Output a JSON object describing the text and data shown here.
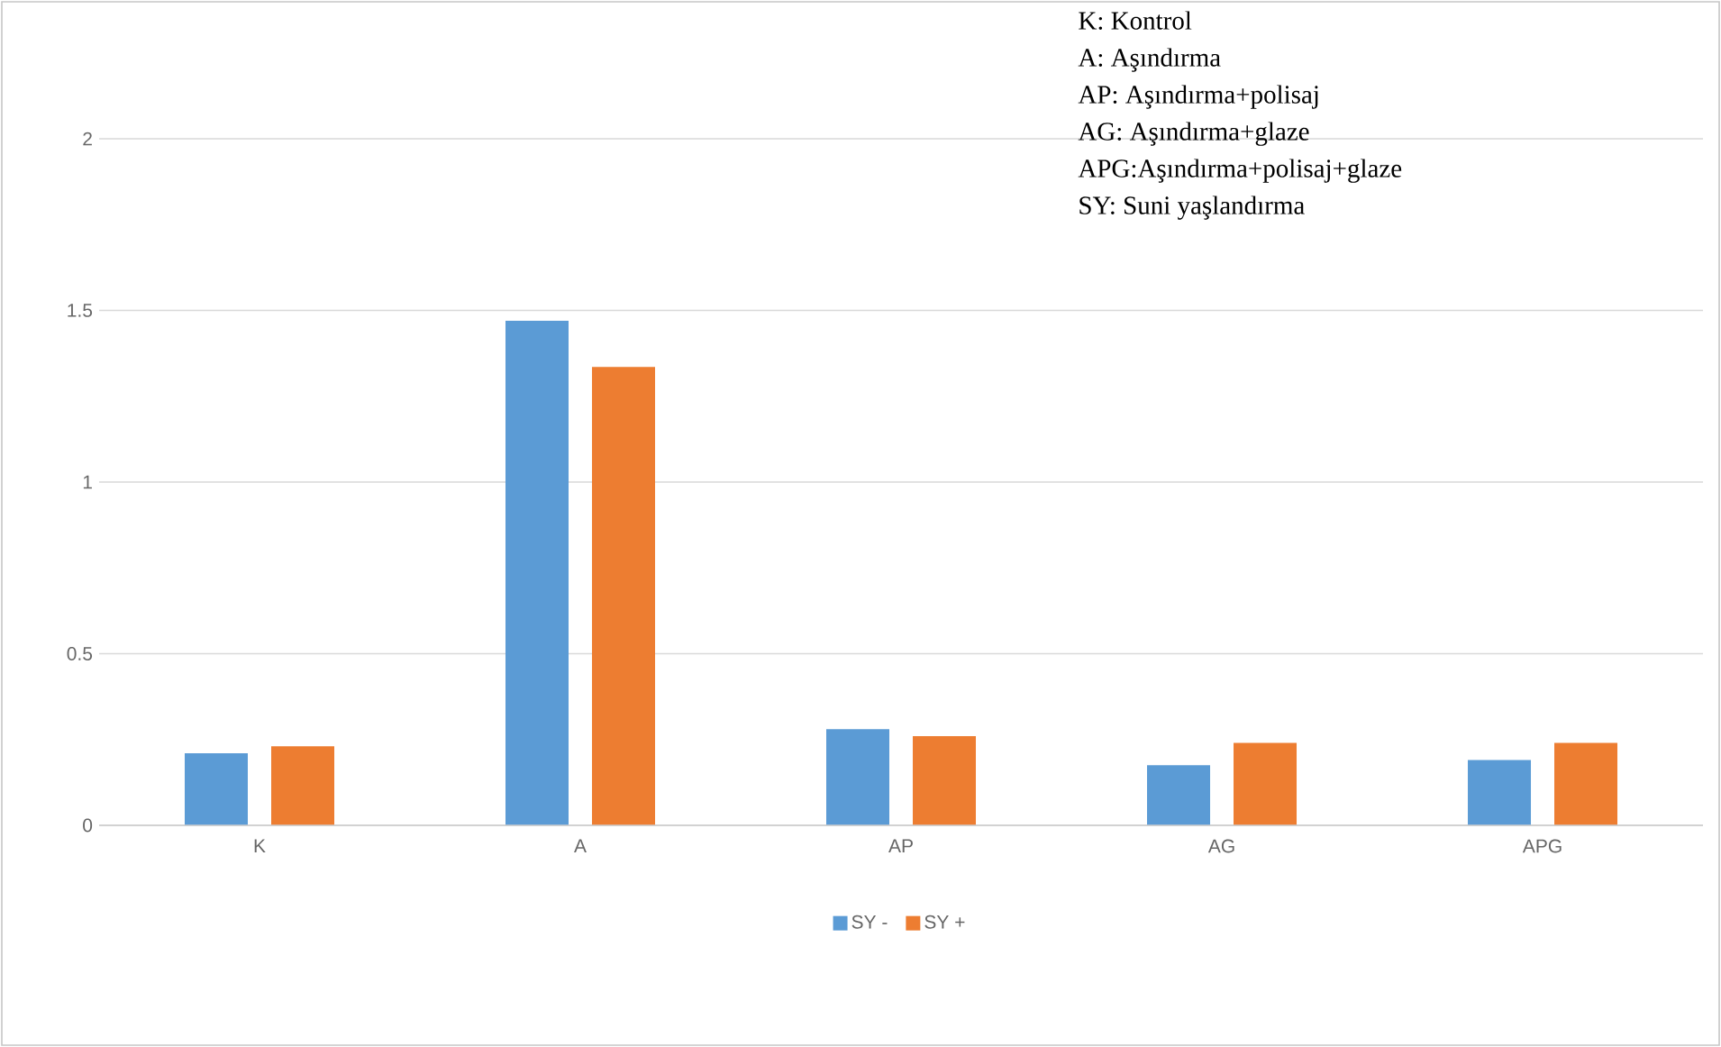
{
  "chart_data": {
    "type": "bar",
    "categories": [
      "K",
      "A",
      "AP",
      "AG",
      "APG"
    ],
    "series": [
      {
        "name": "SY -",
        "color": "#5b9bd5",
        "values": [
          0.21,
          1.47,
          0.28,
          0.175,
          0.19
        ]
      },
      {
        "name": "SY +",
        "color": "#ed7d31",
        "values": [
          0.23,
          1.335,
          0.26,
          0.24,
          0.24
        ]
      }
    ],
    "ylim": [
      0,
      2
    ],
    "yticks": [
      0,
      0.5,
      1,
      1.5,
      2
    ],
    "grid": "y",
    "legend": "bottom",
    "annotations": [
      "K: Kontrol",
      "A: Aşındırma",
      "AP: Aşındırma+polisaj",
      "AG: Aşındırma+glaze",
      "APG:Aşındırma+polisaj+glaze",
      "SY: Suni yaşlandırma"
    ]
  }
}
